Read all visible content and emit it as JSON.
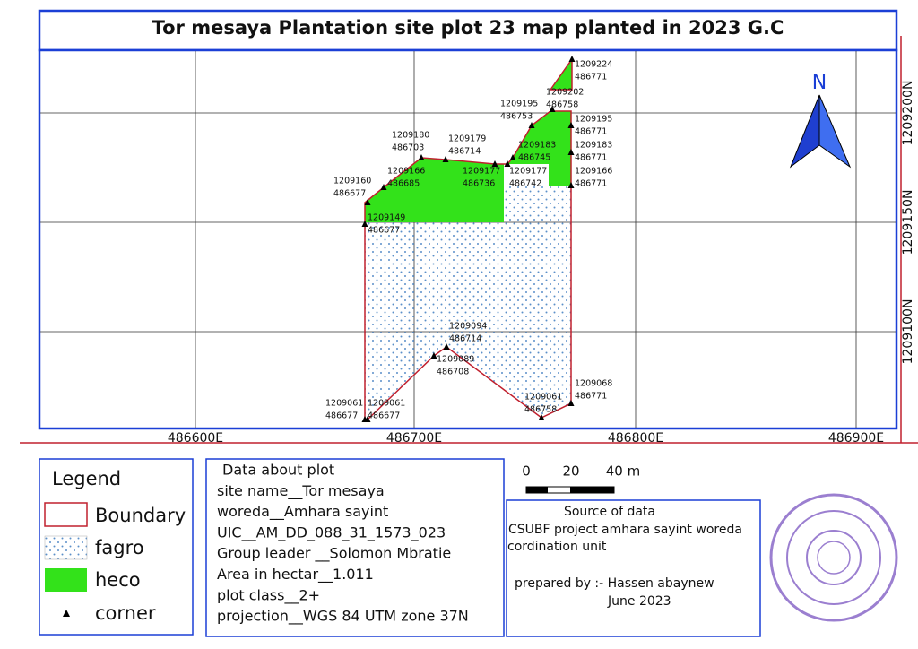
{
  "title": "Tor mesaya Plantation site plot 23 map planted in 2023 G.C",
  "x_labels": [
    "486600E",
    "486700E",
    "486800E",
    "486900E"
  ],
  "y_labels": [
    "1209200N",
    "1209150N",
    "1209100N"
  ],
  "north": "N",
  "corners": [
    [
      "1209224",
      "486771"
    ],
    [
      "1209202",
      "486758"
    ],
    [
      "1209195",
      "486753"
    ],
    [
      "1209195",
      "486771"
    ],
    [
      "1209183",
      "486745"
    ],
    [
      "1209183",
      "486771"
    ],
    [
      "1209180",
      "486703"
    ],
    [
      "1209179",
      "486714"
    ],
    [
      "1209177",
      "486736"
    ],
    [
      "1209177",
      "486742"
    ],
    [
      "1209166",
      "486685"
    ],
    [
      "1209166",
      "486771"
    ],
    [
      "1209160",
      "486677"
    ],
    [
      "1209149",
      "486677"
    ],
    [
      "1209094",
      "486714"
    ],
    [
      "1209089",
      "486708"
    ],
    [
      "1209068",
      "486771"
    ],
    [
      "1209061",
      "486758"
    ],
    [
      "1209061",
      "486677"
    ],
    [
      "1209061",
      "486677"
    ]
  ],
  "legend": {
    "title": "Legend",
    "items": [
      "Boundary",
      "fagro",
      "heco",
      "corner"
    ]
  },
  "plot_info": [
    "Data about plot",
    "site name__Tor mesaya",
    "woreda__Amhara sayint",
    "UIC__AM_DD_088_31_1573_023",
    "Group leader __Solomon Mbratie",
    "Area in hectar__1.011",
    "plot class__2+",
    "projection__WGS 84 UTM zone 37N"
  ],
  "scale": [
    "0",
    "20",
    "40 m"
  ],
  "source": [
    "Source of data",
    "CSUBF project amhara sayint woreda",
    "cordination unit",
    "prepared by :- Hassen abaynew",
    "June 2023"
  ]
}
